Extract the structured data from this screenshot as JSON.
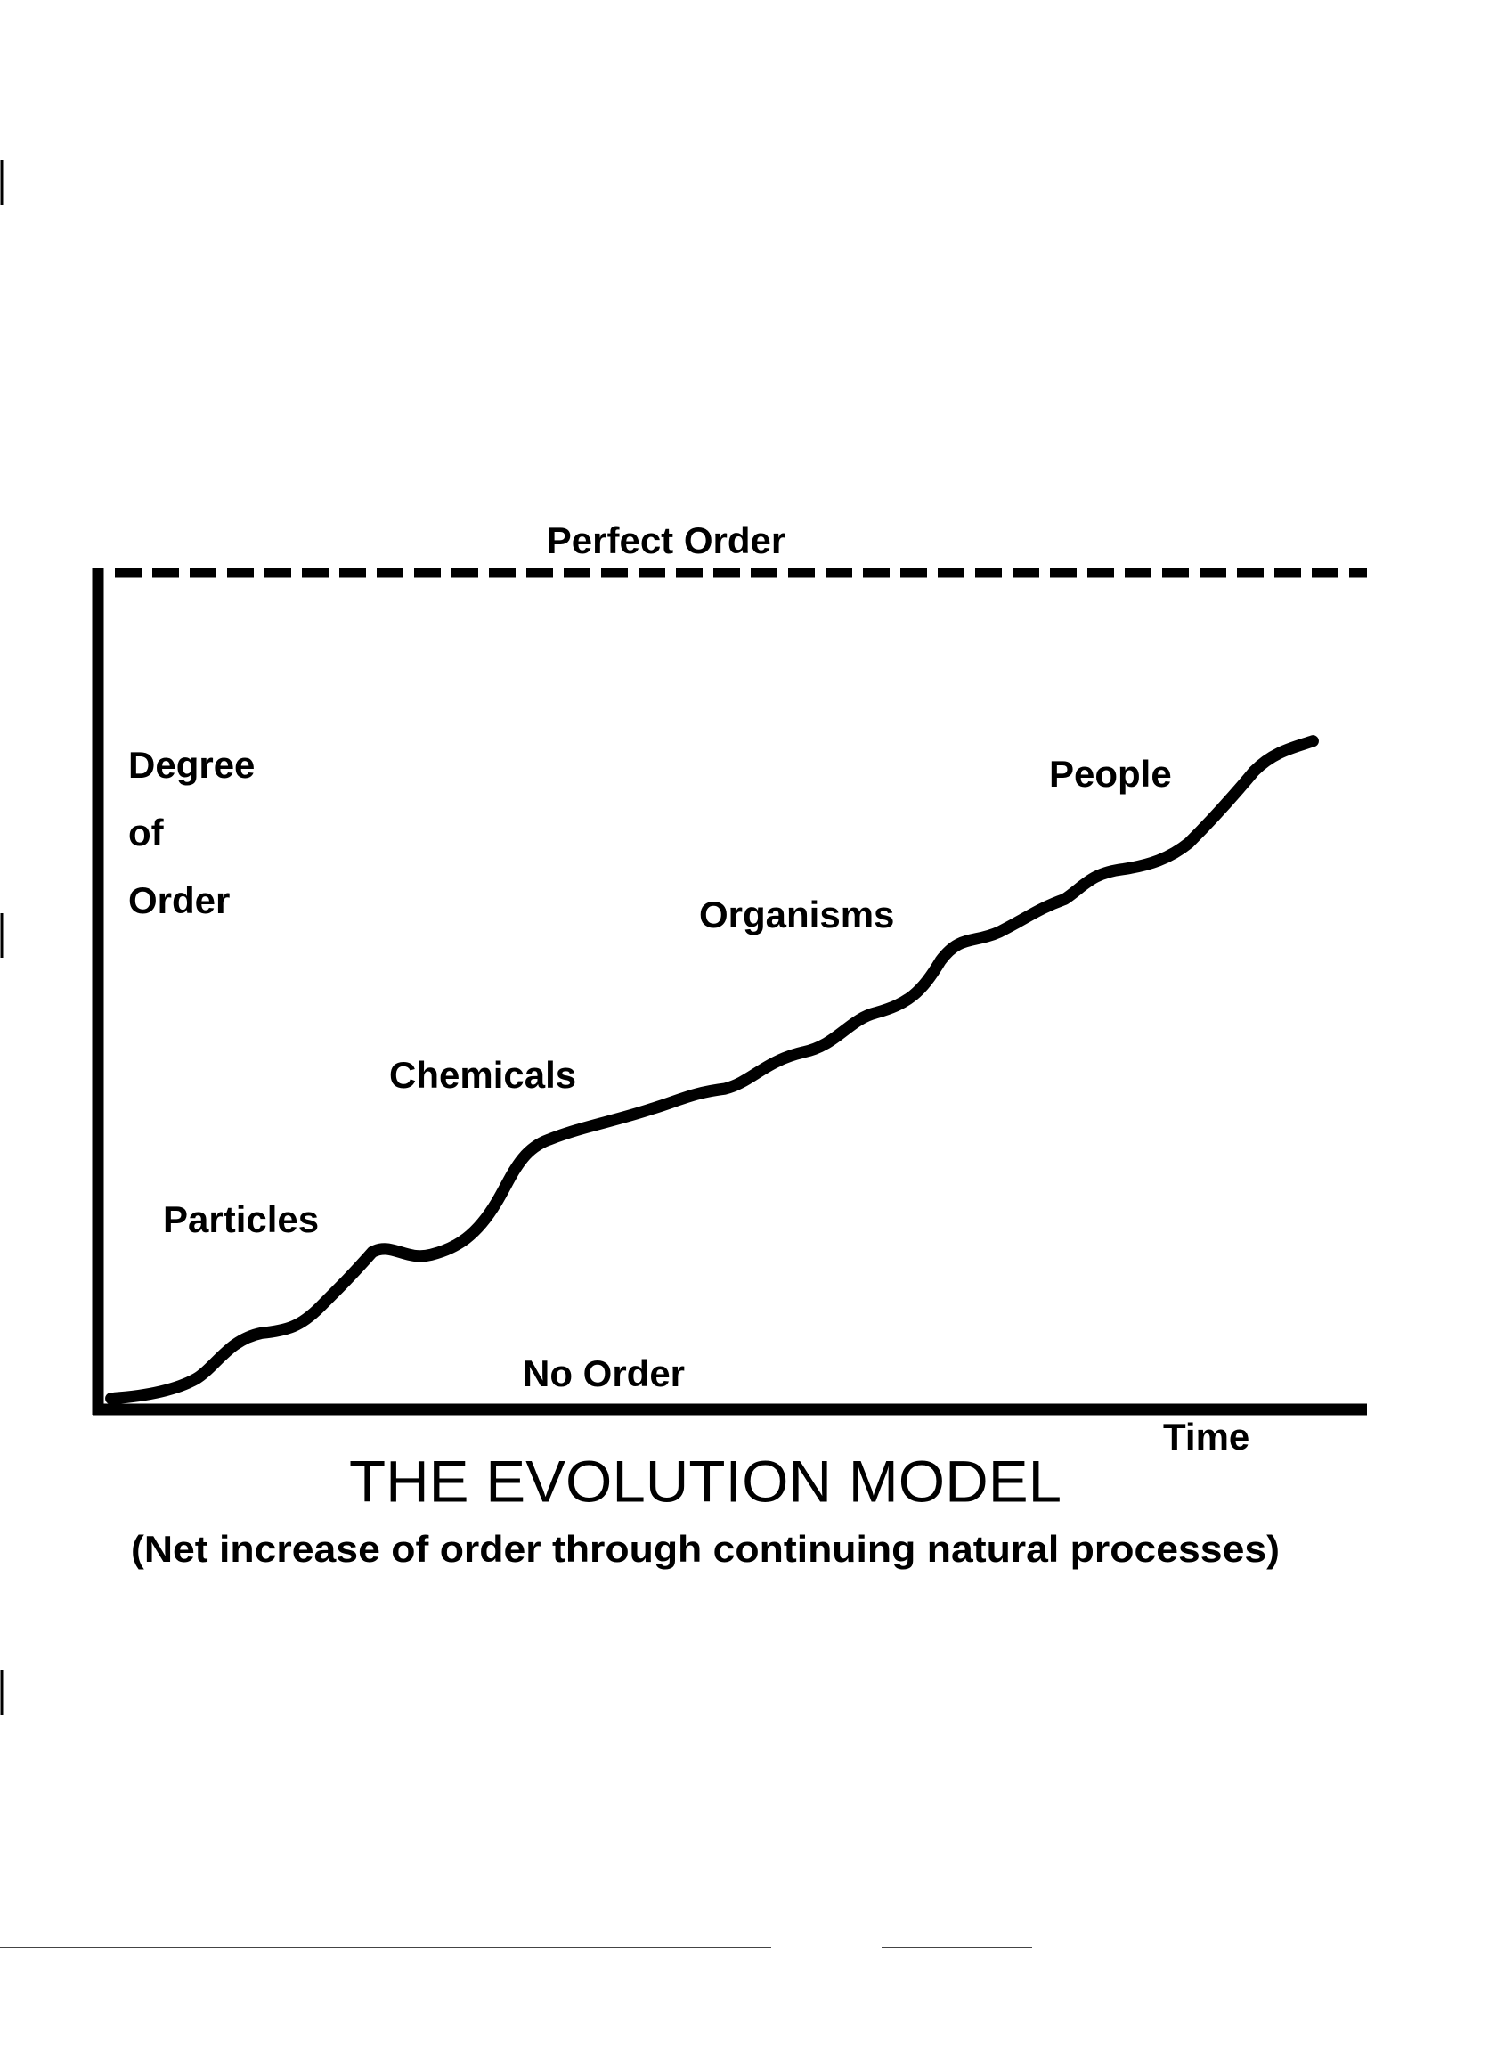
{
  "diagram": {
    "top_label": "Perfect Order",
    "bottom_label": "No Order",
    "y_axis_label": [
      "Degree",
      "of",
      "Order"
    ],
    "x_axis_label": "Time",
    "stages": [
      "Particles",
      "Chemicals",
      "Organisms",
      "People"
    ],
    "title": "THE EVOLUTION MODEL",
    "subtitle": "(Net increase of order through continuing natural processes)"
  }
}
